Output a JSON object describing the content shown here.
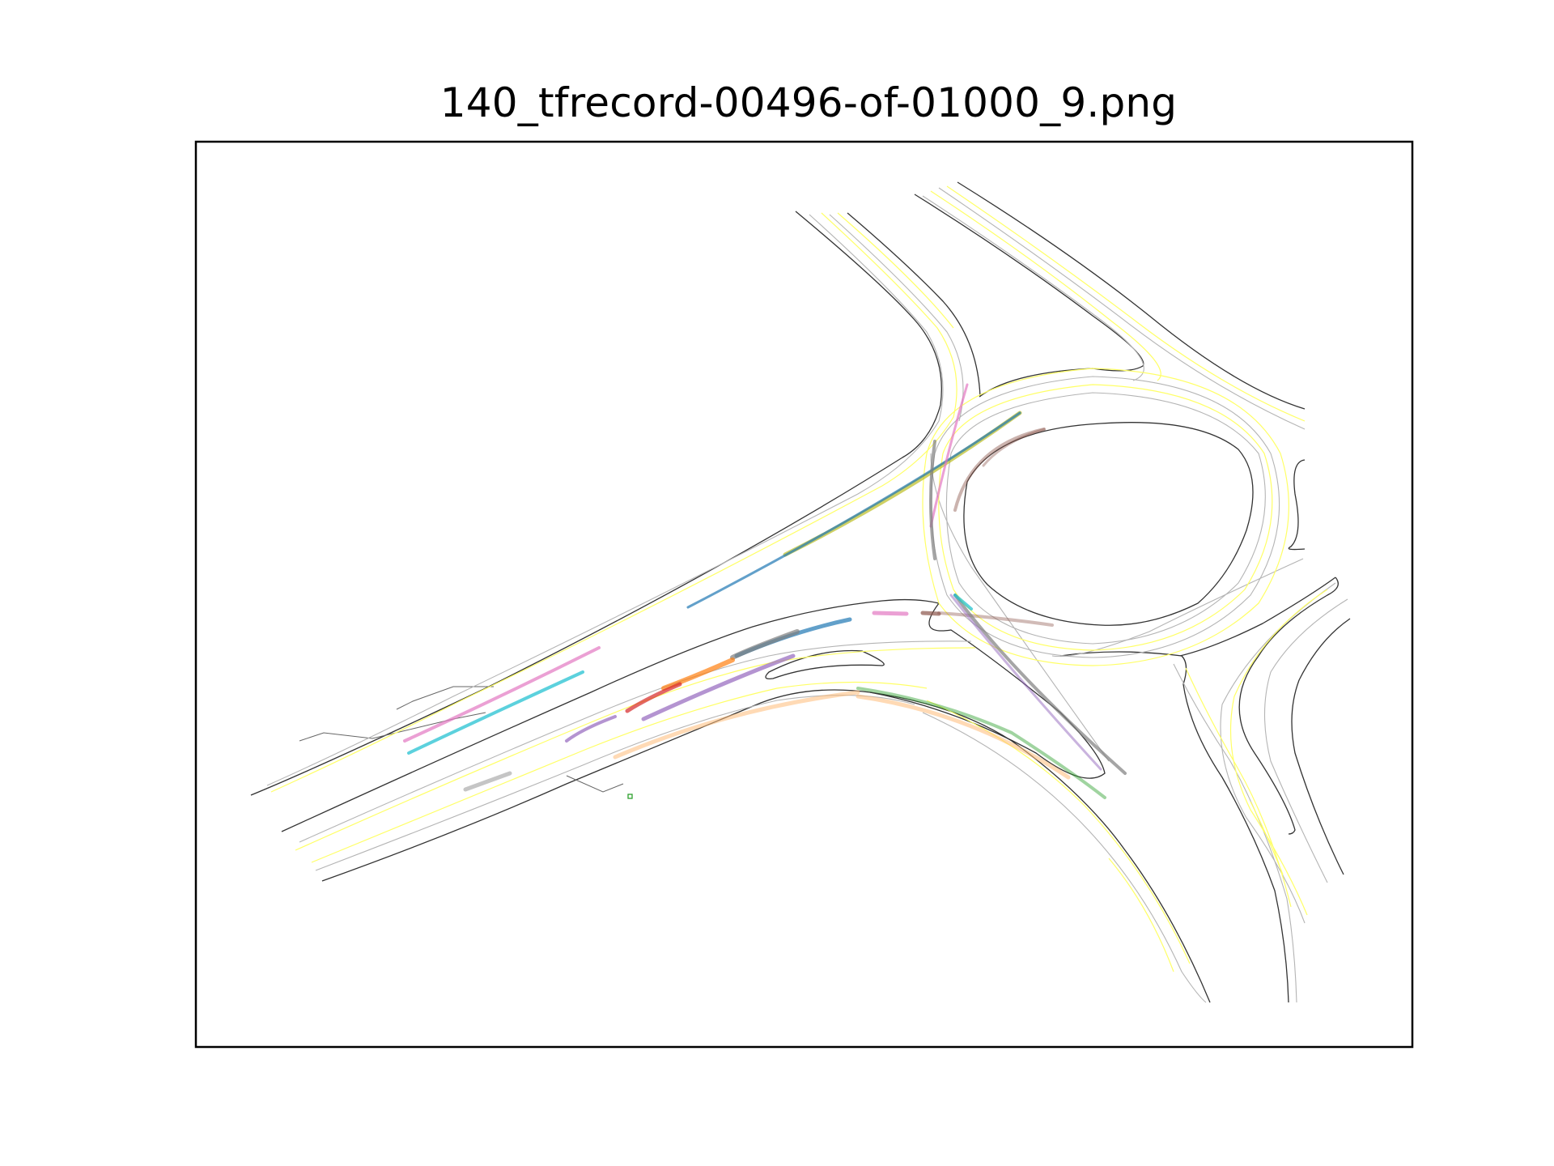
{
  "figure": {
    "title": "140_tfrecord-00496-of-01000_9.png"
  },
  "map": {
    "background": "#ffffff",
    "frame_color": "#000000",
    "road_edge_color": "#333333",
    "lane_line_color": "#ffff66",
    "lane_center_color": "#b4b4b4",
    "stop_marker_color": "#2ca02c",
    "trajectory_colors": [
      "#1f77b4",
      "#17becf",
      "#e377c2",
      "#bcbd22",
      "#d62728",
      "#ff7f0e",
      "#7f7f7f",
      "#8c564b",
      "#9467bd",
      "#2ca02c",
      "#ffbb78"
    ]
  }
}
